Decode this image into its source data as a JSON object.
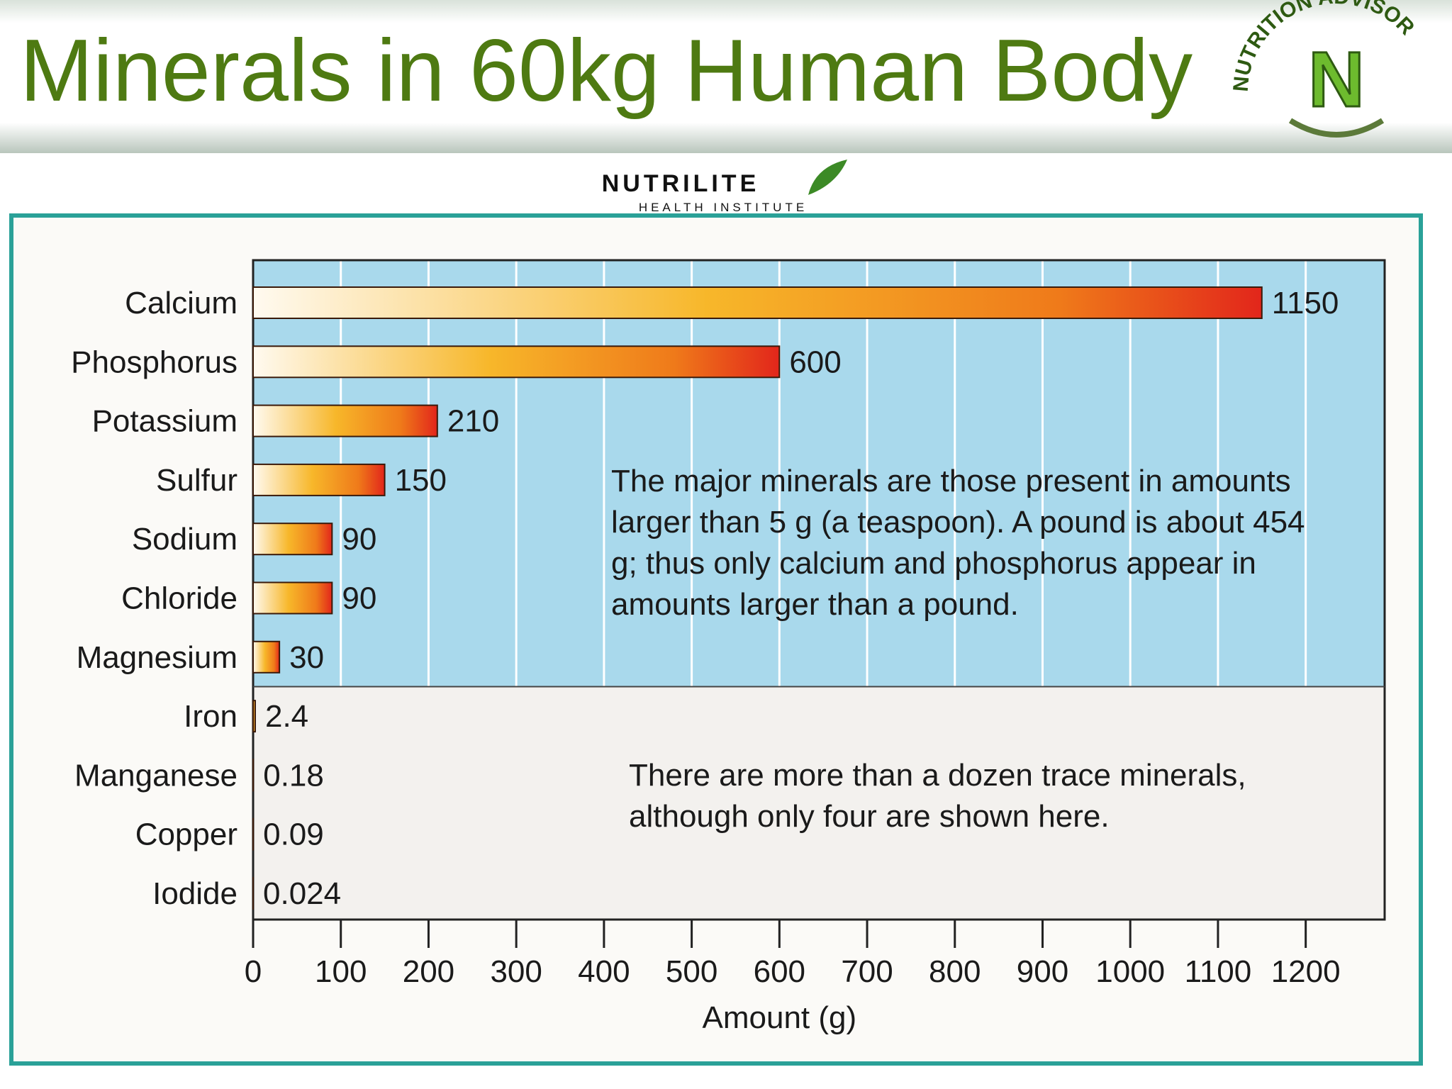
{
  "header": {
    "logo_ring": "NUTRITION ADVISOR",
    "logo_letter": "N"
  },
  "brand": {
    "name": "NUTRILITE",
    "tagline": "HEALTH INSTITUTE"
  },
  "chart_data": {
    "type": "bar",
    "orientation": "horizontal",
    "title": "Minerals in 60kg Human Body",
    "categories": [
      "Calcium",
      "Phosphorus",
      "Potassium",
      "Sulfur",
      "Sodium",
      "Chloride",
      "Magnesium",
      "Iron",
      "Manganese",
      "Copper",
      "Iodide"
    ],
    "values": [
      1150,
      600,
      210,
      150,
      90,
      90,
      30,
      2.4,
      0.18,
      0.09,
      0.024
    ],
    "color": "#e2261b",
    "xlabel": "Amount (g)",
    "xlim": [
      0,
      1290
    ],
    "xticks": [
      0,
      100,
      200,
      300,
      400,
      500,
      600,
      700,
      800,
      900,
      1000,
      1100,
      1200
    ],
    "grid": true,
    "annotations": [
      "The major minerals are those present in amounts larger than 5 g (a teaspoon). A pound is about 454 g; thus only calcium and phosphorus appear in amounts larger than a pound.",
      "There are more than a dozen trace minerals, although only four are shown here."
    ]
  }
}
